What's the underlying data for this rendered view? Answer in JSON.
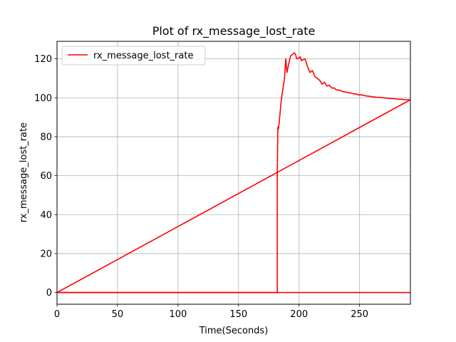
{
  "chart_data": {
    "type": "line",
    "title": "Plot of rx_message_lost_rate",
    "xlabel": "Time(Seconds)",
    "ylabel": "rx_message_lost_rate",
    "xlim": [
      0,
      292
    ],
    "ylim": [
      -6,
      129
    ],
    "xticks": [
      0,
      50,
      100,
      150,
      200,
      250
    ],
    "yticks": [
      0,
      20,
      40,
      60,
      80,
      100,
      120
    ],
    "grid": true,
    "legend_position": "top-left",
    "series": [
      {
        "name": "rx_message_lost_rate",
        "color": "#ff0000",
        "segments": [
          {
            "x": [
              0,
              182,
              182,
              182.5,
              183,
              184,
              185,
              186,
              187,
              188,
              189,
              190,
              191,
              192,
              193,
              194,
              196,
              197,
              198,
              200,
              201,
              202,
              203,
              205,
              207,
              209,
              211,
              213,
              215,
              217,
              219,
              221,
              223,
              225,
              227,
              229,
              231,
              233,
              235,
              237,
              239,
              241,
              243,
              245,
              247,
              249,
              252,
              255,
              258,
              261,
              264,
              267,
              270,
              273,
              276,
              279,
              282,
              285,
              288,
              292
            ],
            "y": [
              0,
              0,
              60,
              85,
              84,
              90,
              97,
              102,
              106,
              110,
              120,
              113,
              116,
              119,
              121.5,
              122,
              123,
              122.5,
              120,
              120.5,
              121,
              119,
              119.5,
              120,
              116,
              113,
              114,
              111,
              110,
              109,
              107,
              108,
              106,
              106.5,
              105,
              105,
              104,
              104,
              103.5,
              103,
              103,
              102.5,
              102.5,
              102,
              102,
              101.5,
              101.5,
              101,
              100.8,
              100.5,
              100.3,
              100.2,
              100,
              99.8,
              99.6,
              99.5,
              99.3,
              99.2,
              99,
              99
            ]
          },
          {
            "x": [
              292,
              0
            ],
            "y": [
              99,
              0
            ]
          },
          {
            "x": [
              0,
              292
            ],
            "y": [
              0,
              0
            ]
          }
        ]
      }
    ]
  }
}
